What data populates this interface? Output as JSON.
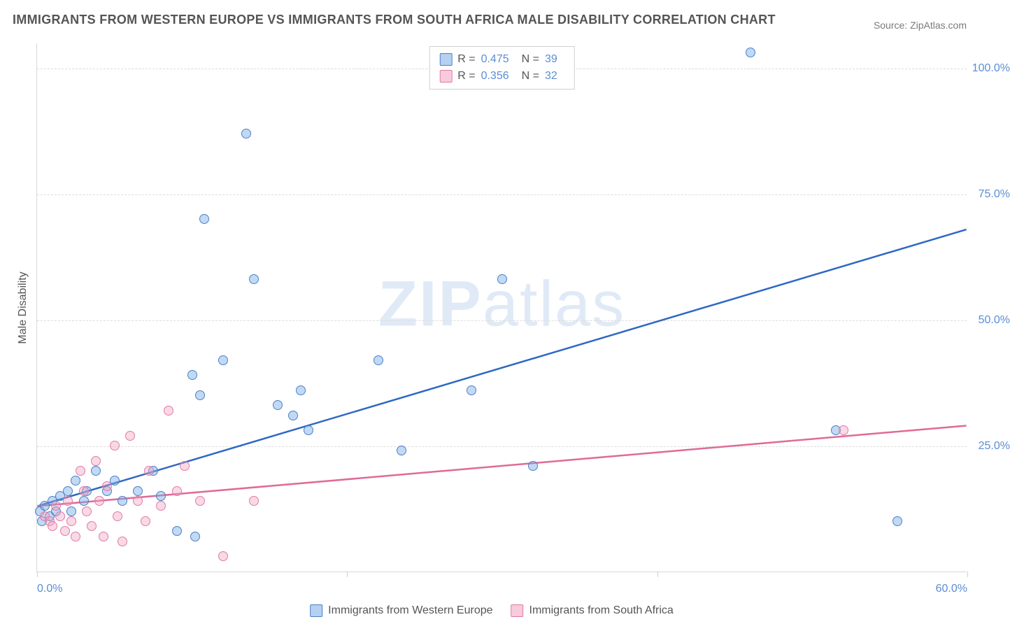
{
  "title": "IMMIGRANTS FROM WESTERN EUROPE VS IMMIGRANTS FROM SOUTH AFRICA MALE DISABILITY CORRELATION CHART",
  "source": "Source: ZipAtlas.com",
  "watermark_a": "ZIP",
  "watermark_b": "atlas",
  "y_axis_label": "Male Disability",
  "chart": {
    "type": "scatter",
    "xlim": [
      0,
      60
    ],
    "ylim": [
      0,
      105
    ],
    "x_ticks": [
      0,
      20,
      40,
      60
    ],
    "x_tick_labels": [
      "0.0%",
      "",
      "",
      "60.0%"
    ],
    "y_gridlines": [
      25,
      50,
      75,
      100
    ],
    "y_tick_labels": [
      "25.0%",
      "50.0%",
      "75.0%",
      "100.0%"
    ],
    "background_color": "#ffffff",
    "grid_color": "#dcdcdc",
    "axis_color": "#d8d8d8",
    "tick_label_color": "#5b8dd6",
    "marker_size": 14,
    "series": [
      {
        "key": "we",
        "label": "Immigrants from Western Europe",
        "color_fill": "rgba(120,170,230,0.45)",
        "color_stroke": "#4a80c7",
        "trend_color": "#2f68c4",
        "trend_width": 2.5,
        "trend_p1": [
          0,
          13
        ],
        "trend_p2": [
          60,
          68
        ],
        "R": "0.475",
        "N": "39",
        "points": [
          [
            0.2,
            12
          ],
          [
            0.3,
            10
          ],
          [
            0.5,
            13
          ],
          [
            0.8,
            11
          ],
          [
            1.0,
            14
          ],
          [
            1.2,
            12
          ],
          [
            1.5,
            15
          ],
          [
            2.0,
            16
          ],
          [
            2.2,
            12
          ],
          [
            2.5,
            18
          ],
          [
            3.0,
            14
          ],
          [
            3.2,
            16
          ],
          [
            3.8,
            20
          ],
          [
            4.5,
            16
          ],
          [
            5.0,
            18
          ],
          [
            5.5,
            14
          ],
          [
            6.5,
            16
          ],
          [
            7.5,
            20
          ],
          [
            8.0,
            15
          ],
          [
            9.0,
            8
          ],
          [
            10.2,
            7
          ],
          [
            10.0,
            39
          ],
          [
            10.5,
            35
          ],
          [
            10.8,
            70
          ],
          [
            12.0,
            42
          ],
          [
            13.5,
            87
          ],
          [
            14.0,
            58
          ],
          [
            15.5,
            33
          ],
          [
            16.5,
            31
          ],
          [
            17.0,
            36
          ],
          [
            17.5,
            28
          ],
          [
            22.0,
            42
          ],
          [
            23.5,
            24
          ],
          [
            28.0,
            36
          ],
          [
            30.0,
            58
          ],
          [
            32.0,
            21
          ],
          [
            46.0,
            103
          ],
          [
            55.5,
            10
          ],
          [
            51.5,
            28
          ]
        ]
      },
      {
        "key": "sa",
        "label": "Immigrants from South Africa",
        "color_fill": "rgba(240,160,190,0.40)",
        "color_stroke": "#e27aa5",
        "trend_color": "#e06a98",
        "trend_width": 2.5,
        "trend_p1": [
          0,
          13
        ],
        "trend_p2": [
          60,
          29
        ],
        "R": "0.356",
        "N": "32",
        "points": [
          [
            0.5,
            11
          ],
          [
            0.8,
            10
          ],
          [
            1.0,
            9
          ],
          [
            1.2,
            13
          ],
          [
            1.5,
            11
          ],
          [
            1.8,
            8
          ],
          [
            2.0,
            14
          ],
          [
            2.2,
            10
          ],
          [
            2.5,
            7
          ],
          [
            2.8,
            20
          ],
          [
            3.0,
            16
          ],
          [
            3.2,
            12
          ],
          [
            3.5,
            9
          ],
          [
            3.8,
            22
          ],
          [
            4.0,
            14
          ],
          [
            4.3,
            7
          ],
          [
            4.5,
            17
          ],
          [
            5.0,
            25
          ],
          [
            5.2,
            11
          ],
          [
            5.5,
            6
          ],
          [
            6.0,
            27
          ],
          [
            6.5,
            14
          ],
          [
            7.0,
            10
          ],
          [
            7.2,
            20
          ],
          [
            8.0,
            13
          ],
          [
            8.5,
            32
          ],
          [
            9.0,
            16
          ],
          [
            9.5,
            21
          ],
          [
            10.5,
            14
          ],
          [
            12.0,
            3
          ],
          [
            14.0,
            14
          ],
          [
            52.0,
            28
          ]
        ]
      }
    ]
  },
  "legend_top": {
    "r_label": "R =",
    "n_label": "N ="
  }
}
